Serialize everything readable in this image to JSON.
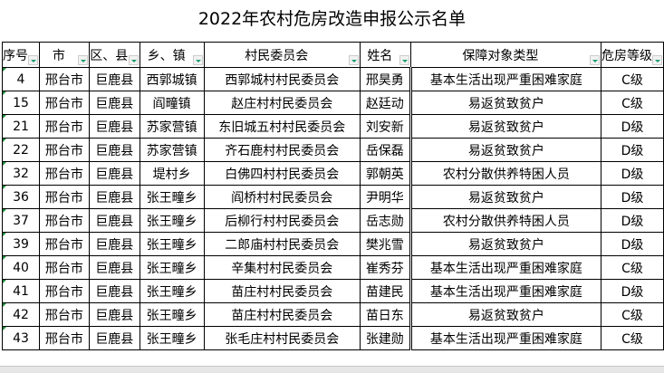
{
  "title": "2022年农村危房改造申报公示名单",
  "headers": [
    "序号",
    "市",
    "区、县",
    "乡、镇",
    "村民委员会",
    "姓名",
    "保障对象类型",
    "危房等级"
  ],
  "rows": [
    [
      "4",
      "邢台市",
      "巨鹿县",
      "西郭城镇",
      "西郭城村村民委员会",
      "邢昊勇",
      "基本生活出现严重困难家庭",
      "C级"
    ],
    [
      "15",
      "邢台市",
      "巨鹿县",
      "阎疃镇",
      "赵庄村村民委员会",
      "赵廷动",
      "易返贫致贫户",
      "C级"
    ],
    [
      "21",
      "邢台市",
      "巨鹿县",
      "苏家营镇",
      "东旧城五村村民委员会",
      "刘安新",
      "易返贫致贫户",
      "D级"
    ],
    [
      "22",
      "邢台市",
      "巨鹿县",
      "苏家营镇",
      "齐石鹿村村民委员会",
      "岳保磊",
      "易返贫致贫户",
      "D级"
    ],
    [
      "32",
      "邢台市",
      "巨鹿县",
      "堤村乡",
      "白佛四村村民委员会",
      "郭朝英",
      "农村分散供养特困人员",
      "D级"
    ],
    [
      "36",
      "邢台市",
      "巨鹿县",
      "张王疃乡",
      "阎桥村村民委员会",
      "尹明华",
      "易返贫致贫户",
      "D级"
    ],
    [
      "37",
      "邢台市",
      "巨鹿县",
      "张王疃乡",
      "后柳行村村民委员会",
      "岳志勋",
      "农村分散供养特困人员",
      "D级"
    ],
    [
      "39",
      "邢台市",
      "巨鹿县",
      "张王疃乡",
      "二郎庙村村民委员会",
      "樊兆雪",
      "易返贫致贫户",
      "D级"
    ],
    [
      "40",
      "邢台市",
      "巨鹿县",
      "张王疃乡",
      "辛集村村民委员会",
      "崔秀芬",
      "基本生活出现严重困难家庭",
      "C级"
    ],
    [
      "41",
      "邢台市",
      "巨鹿县",
      "张王疃乡",
      "苗庄村村民委员会",
      "苗建民",
      "基本生活出现严重困难家庭",
      "D级"
    ],
    [
      "42",
      "邢台市",
      "巨鹿县",
      "张王疃乡",
      "苗庄村村民委员会",
      "苗日东",
      "易返贫致贫户",
      "C级"
    ],
    [
      "43",
      "邢台市",
      "巨鹿县",
      "张王疃乡",
      "张毛庄村村民委员会",
      "张建勋",
      "基本生活出现严重困难家庭",
      "C级"
    ]
  ]
}
